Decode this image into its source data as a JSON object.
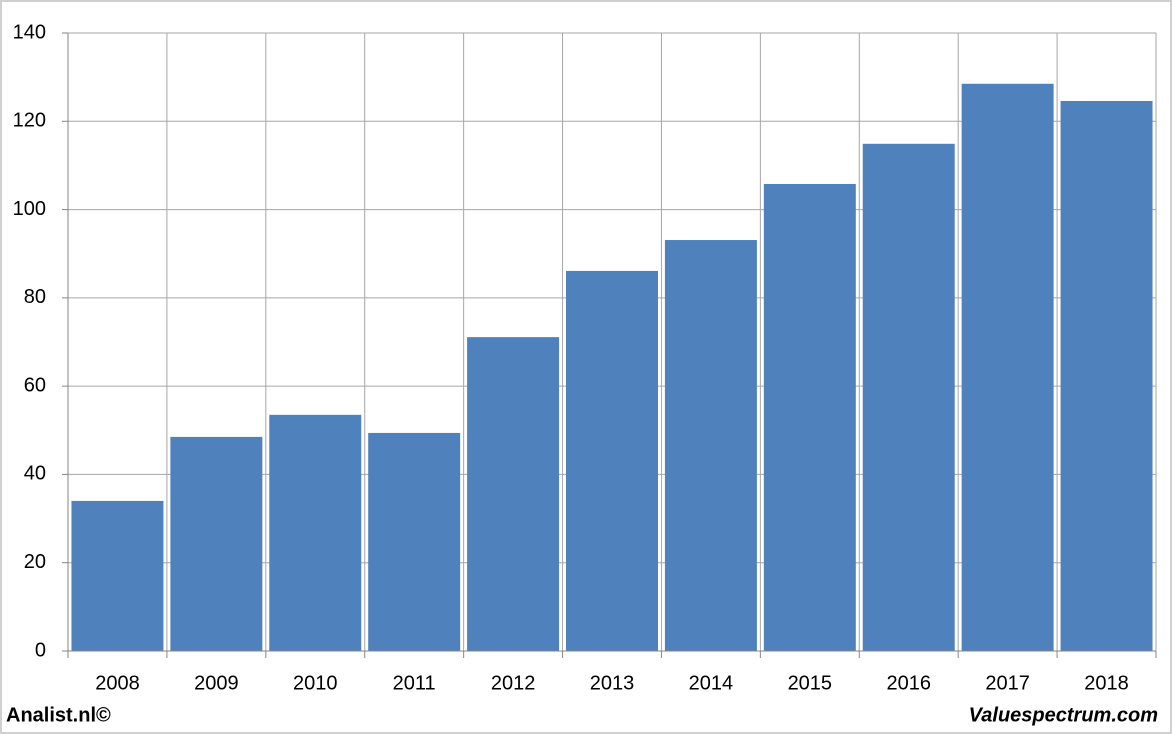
{
  "chart_data": {
    "type": "bar",
    "categories": [
      "2008",
      "2009",
      "2010",
      "2011",
      "2012",
      "2013",
      "2014",
      "2015",
      "2016",
      "2017",
      "2018"
    ],
    "values": [
      34.0,
      48.5,
      53.5,
      49.4,
      71.1,
      86.1,
      93.1,
      105.8,
      114.9,
      128.5,
      124.6
    ],
    "color": "#4f81bd",
    "ylim": [
      0,
      140
    ],
    "yticks": [
      0,
      20,
      40,
      60,
      80,
      100,
      120,
      140
    ],
    "grid": true,
    "footer_left": "Analist.nl©",
    "footer_right": "Valuespectrum.com"
  }
}
